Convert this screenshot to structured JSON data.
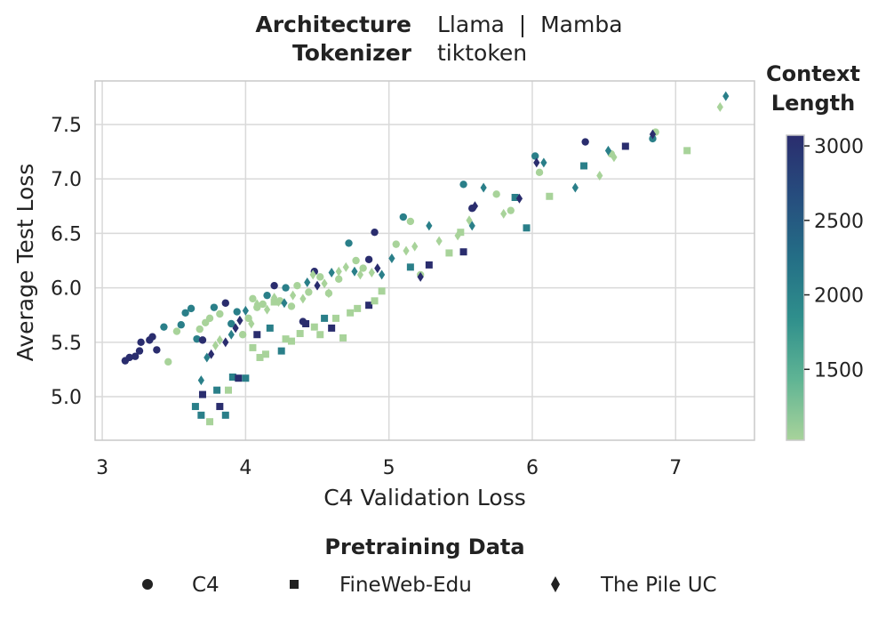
{
  "header": {
    "architecture_label": "Architecture",
    "architecture_value": "Llama  |  Mamba",
    "tokenizer_label": "Tokenizer",
    "tokenizer_value": "tiktoken"
  },
  "colorbar": {
    "title_line1": "Context",
    "title_line2": "Length",
    "min": 1024,
    "max": 3072,
    "ticks": [
      1500,
      2000,
      2500,
      3000
    ],
    "colors": [
      "#a8d39a",
      "#5fb494",
      "#2f8f8c",
      "#246e86",
      "#264d7e",
      "#2a2d6e"
    ]
  },
  "legend": {
    "title": "Pretraining Data",
    "items": [
      {
        "label": "C4",
        "marker": "circle"
      },
      {
        "label": "FineWeb-Edu",
        "marker": "square"
      },
      {
        "label": "The Pile UC",
        "marker": "diamond"
      }
    ]
  },
  "chart_data": {
    "type": "scatter",
    "title": "",
    "xlabel": "C4 Validation Loss",
    "ylabel": "Average Test Loss",
    "xlim": [
      2.95,
      7.55
    ],
    "ylim": [
      4.6,
      7.9
    ],
    "xticks": [
      3,
      4,
      5,
      6,
      7
    ],
    "yticks": [
      5.0,
      5.5,
      6.0,
      6.5,
      7.0,
      7.5
    ],
    "grid": true,
    "series": [
      {
        "name": "C4",
        "marker": "circle",
        "points": [
          {
            "x": 3.16,
            "y": 5.33,
            "ctx": 3072
          },
          {
            "x": 3.19,
            "y": 5.36,
            "ctx": 3072
          },
          {
            "x": 3.23,
            "y": 5.37,
            "ctx": 3072
          },
          {
            "x": 3.26,
            "y": 5.42,
            "ctx": 3072
          },
          {
            "x": 3.27,
            "y": 5.5,
            "ctx": 3072
          },
          {
            "x": 3.33,
            "y": 5.52,
            "ctx": 3072
          },
          {
            "x": 3.35,
            "y": 5.55,
            "ctx": 3072
          },
          {
            "x": 3.38,
            "y": 5.43,
            "ctx": 3072
          },
          {
            "x": 3.43,
            "y": 5.64,
            "ctx": 2048
          },
          {
            "x": 3.46,
            "y": 5.32,
            "ctx": 1024
          },
          {
            "x": 3.52,
            "y": 5.6,
            "ctx": 1024
          },
          {
            "x": 3.55,
            "y": 5.66,
            "ctx": 2048
          },
          {
            "x": 3.58,
            "y": 5.77,
            "ctx": 2048
          },
          {
            "x": 3.62,
            "y": 5.81,
            "ctx": 2048
          },
          {
            "x": 3.66,
            "y": 5.53,
            "ctx": 2048
          },
          {
            "x": 3.68,
            "y": 5.62,
            "ctx": 1024
          },
          {
            "x": 3.7,
            "y": 5.52,
            "ctx": 3072
          },
          {
            "x": 3.72,
            "y": 5.68,
            "ctx": 1024
          },
          {
            "x": 3.75,
            "y": 5.72,
            "ctx": 1024
          },
          {
            "x": 3.78,
            "y": 5.82,
            "ctx": 2048
          },
          {
            "x": 3.82,
            "y": 5.76,
            "ctx": 1024
          },
          {
            "x": 3.86,
            "y": 5.86,
            "ctx": 3072
          },
          {
            "x": 3.9,
            "y": 5.67,
            "ctx": 2048
          },
          {
            "x": 3.94,
            "y": 5.78,
            "ctx": 2048
          },
          {
            "x": 3.98,
            "y": 5.57,
            "ctx": 1024
          },
          {
            "x": 4.02,
            "y": 5.72,
            "ctx": 1024
          },
          {
            "x": 4.05,
            "y": 5.9,
            "ctx": 1024
          },
          {
            "x": 4.08,
            "y": 5.82,
            "ctx": 1024
          },
          {
            "x": 4.12,
            "y": 5.85,
            "ctx": 1024
          },
          {
            "x": 4.15,
            "y": 5.93,
            "ctx": 2048
          },
          {
            "x": 4.2,
            "y": 6.02,
            "ctx": 3072
          },
          {
            "x": 4.24,
            "y": 5.88,
            "ctx": 1024
          },
          {
            "x": 4.28,
            "y": 6.0,
            "ctx": 2048
          },
          {
            "x": 4.32,
            "y": 5.83,
            "ctx": 1024
          },
          {
            "x": 4.36,
            "y": 6.02,
            "ctx": 1024
          },
          {
            "x": 4.4,
            "y": 5.69,
            "ctx": 3072
          },
          {
            "x": 4.44,
            "y": 5.96,
            "ctx": 1024
          },
          {
            "x": 4.48,
            "y": 6.15,
            "ctx": 3072
          },
          {
            "x": 4.52,
            "y": 6.1,
            "ctx": 1024
          },
          {
            "x": 4.58,
            "y": 5.95,
            "ctx": 1024
          },
          {
            "x": 4.65,
            "y": 6.08,
            "ctx": 1024
          },
          {
            "x": 4.72,
            "y": 6.41,
            "ctx": 2048
          },
          {
            "x": 4.77,
            "y": 6.25,
            "ctx": 1024
          },
          {
            "x": 4.82,
            "y": 6.18,
            "ctx": 1024
          },
          {
            "x": 4.86,
            "y": 6.26,
            "ctx": 3072
          },
          {
            "x": 4.9,
            "y": 6.51,
            "ctx": 3072
          },
          {
            "x": 5.05,
            "y": 6.4,
            "ctx": 1024
          },
          {
            "x": 5.1,
            "y": 6.65,
            "ctx": 2048
          },
          {
            "x": 5.15,
            "y": 6.61,
            "ctx": 1024
          },
          {
            "x": 5.22,
            "y": 6.12,
            "ctx": 1024
          },
          {
            "x": 5.52,
            "y": 6.95,
            "ctx": 2048
          },
          {
            "x": 5.58,
            "y": 6.73,
            "ctx": 3072
          },
          {
            "x": 5.75,
            "y": 6.86,
            "ctx": 1024
          },
          {
            "x": 5.85,
            "y": 6.71,
            "ctx": 1024
          },
          {
            "x": 6.02,
            "y": 7.21,
            "ctx": 2048
          },
          {
            "x": 6.05,
            "y": 7.06,
            "ctx": 1024
          },
          {
            "x": 6.37,
            "y": 7.34,
            "ctx": 3072
          },
          {
            "x": 6.55,
            "y": 7.23,
            "ctx": 1024
          },
          {
            "x": 6.84,
            "y": 7.37,
            "ctx": 2048
          },
          {
            "x": 6.86,
            "y": 7.43,
            "ctx": 1024
          }
        ]
      },
      {
        "name": "FineWeb-Edu",
        "marker": "square",
        "points": [
          {
            "x": 3.65,
            "y": 4.91,
            "ctx": 2048
          },
          {
            "x": 3.69,
            "y": 4.83,
            "ctx": 2048
          },
          {
            "x": 3.7,
            "y": 5.02,
            "ctx": 3072
          },
          {
            "x": 3.75,
            "y": 4.77,
            "ctx": 1024
          },
          {
            "x": 3.8,
            "y": 5.06,
            "ctx": 2048
          },
          {
            "x": 3.82,
            "y": 4.91,
            "ctx": 3072
          },
          {
            "x": 3.86,
            "y": 4.83,
            "ctx": 2048
          },
          {
            "x": 3.88,
            "y": 5.06,
            "ctx": 1024
          },
          {
            "x": 3.91,
            "y": 5.18,
            "ctx": 2048
          },
          {
            "x": 3.95,
            "y": 5.17,
            "ctx": 3072
          },
          {
            "x": 4.0,
            "y": 5.17,
            "ctx": 2048
          },
          {
            "x": 4.05,
            "y": 5.45,
            "ctx": 1024
          },
          {
            "x": 4.08,
            "y": 5.57,
            "ctx": 3072
          },
          {
            "x": 4.1,
            "y": 5.36,
            "ctx": 1024
          },
          {
            "x": 4.14,
            "y": 5.39,
            "ctx": 1024
          },
          {
            "x": 4.17,
            "y": 5.63,
            "ctx": 2048
          },
          {
            "x": 4.2,
            "y": 5.87,
            "ctx": 1024
          },
          {
            "x": 4.25,
            "y": 5.42,
            "ctx": 2048
          },
          {
            "x": 4.28,
            "y": 5.53,
            "ctx": 1024
          },
          {
            "x": 4.32,
            "y": 5.51,
            "ctx": 1024
          },
          {
            "x": 4.38,
            "y": 5.58,
            "ctx": 1024
          },
          {
            "x": 4.42,
            "y": 5.67,
            "ctx": 3072
          },
          {
            "x": 4.48,
            "y": 5.64,
            "ctx": 1024
          },
          {
            "x": 4.52,
            "y": 5.57,
            "ctx": 1024
          },
          {
            "x": 4.55,
            "y": 5.72,
            "ctx": 2048
          },
          {
            "x": 4.6,
            "y": 5.63,
            "ctx": 3072
          },
          {
            "x": 4.63,
            "y": 5.72,
            "ctx": 1024
          },
          {
            "x": 4.68,
            "y": 5.54,
            "ctx": 1024
          },
          {
            "x": 4.73,
            "y": 5.77,
            "ctx": 1024
          },
          {
            "x": 4.78,
            "y": 5.81,
            "ctx": 1024
          },
          {
            "x": 4.86,
            "y": 5.84,
            "ctx": 3072
          },
          {
            "x": 4.9,
            "y": 5.88,
            "ctx": 1024
          },
          {
            "x": 4.95,
            "y": 5.97,
            "ctx": 1024
          },
          {
            "x": 5.15,
            "y": 6.19,
            "ctx": 2048
          },
          {
            "x": 5.28,
            "y": 6.21,
            "ctx": 3072
          },
          {
            "x": 5.42,
            "y": 6.32,
            "ctx": 1024
          },
          {
            "x": 5.52,
            "y": 6.33,
            "ctx": 3072
          },
          {
            "x": 5.5,
            "y": 6.51,
            "ctx": 1024
          },
          {
            "x": 5.88,
            "y": 6.83,
            "ctx": 2048
          },
          {
            "x": 5.96,
            "y": 6.55,
            "ctx": 2048
          },
          {
            "x": 6.12,
            "y": 6.84,
            "ctx": 1024
          },
          {
            "x": 6.36,
            "y": 7.12,
            "ctx": 2048
          },
          {
            "x": 6.65,
            "y": 7.3,
            "ctx": 3072
          },
          {
            "x": 7.08,
            "y": 7.26,
            "ctx": 1024
          }
        ]
      },
      {
        "name": "The Pile UC",
        "marker": "diamond",
        "points": [
          {
            "x": 3.69,
            "y": 5.15,
            "ctx": 2048
          },
          {
            "x": 3.73,
            "y": 5.36,
            "ctx": 2048
          },
          {
            "x": 3.76,
            "y": 5.39,
            "ctx": 3072
          },
          {
            "x": 3.79,
            "y": 5.47,
            "ctx": 1024
          },
          {
            "x": 3.82,
            "y": 5.52,
            "ctx": 1024
          },
          {
            "x": 3.86,
            "y": 5.5,
            "ctx": 3072
          },
          {
            "x": 3.9,
            "y": 5.57,
            "ctx": 2048
          },
          {
            "x": 3.93,
            "y": 5.63,
            "ctx": 3072
          },
          {
            "x": 3.96,
            "y": 5.7,
            "ctx": 3072
          },
          {
            "x": 4.0,
            "y": 5.79,
            "ctx": 2048
          },
          {
            "x": 4.04,
            "y": 5.67,
            "ctx": 1024
          },
          {
            "x": 4.08,
            "y": 5.85,
            "ctx": 1024
          },
          {
            "x": 4.15,
            "y": 5.8,
            "ctx": 1024
          },
          {
            "x": 4.2,
            "y": 5.91,
            "ctx": 1024
          },
          {
            "x": 4.23,
            "y": 5.87,
            "ctx": 1024
          },
          {
            "x": 4.27,
            "y": 5.86,
            "ctx": 2048
          },
          {
            "x": 4.33,
            "y": 5.93,
            "ctx": 1024
          },
          {
            "x": 4.4,
            "y": 5.9,
            "ctx": 1024
          },
          {
            "x": 4.43,
            "y": 6.05,
            "ctx": 2048
          },
          {
            "x": 4.47,
            "y": 6.12,
            "ctx": 1024
          },
          {
            "x": 4.5,
            "y": 6.02,
            "ctx": 3072
          },
          {
            "x": 4.55,
            "y": 6.04,
            "ctx": 1024
          },
          {
            "x": 4.58,
            "y": 5.95,
            "ctx": 1024
          },
          {
            "x": 4.6,
            "y": 6.14,
            "ctx": 2048
          },
          {
            "x": 4.65,
            "y": 6.15,
            "ctx": 1024
          },
          {
            "x": 4.7,
            "y": 6.19,
            "ctx": 1024
          },
          {
            "x": 4.76,
            "y": 6.15,
            "ctx": 2048
          },
          {
            "x": 4.8,
            "y": 6.12,
            "ctx": 1024
          },
          {
            "x": 4.88,
            "y": 6.14,
            "ctx": 1024
          },
          {
            "x": 4.92,
            "y": 6.18,
            "ctx": 3072
          },
          {
            "x": 4.95,
            "y": 6.12,
            "ctx": 2048
          },
          {
            "x": 5.02,
            "y": 6.27,
            "ctx": 2048
          },
          {
            "x": 5.12,
            "y": 6.34,
            "ctx": 1024
          },
          {
            "x": 5.18,
            "y": 6.38,
            "ctx": 1024
          },
          {
            "x": 5.22,
            "y": 6.1,
            "ctx": 3072
          },
          {
            "x": 5.28,
            "y": 6.57,
            "ctx": 2048
          },
          {
            "x": 5.35,
            "y": 6.43,
            "ctx": 1024
          },
          {
            "x": 5.48,
            "y": 6.48,
            "ctx": 1024
          },
          {
            "x": 5.56,
            "y": 6.62,
            "ctx": 1024
          },
          {
            "x": 5.58,
            "y": 6.57,
            "ctx": 2048
          },
          {
            "x": 5.6,
            "y": 6.75,
            "ctx": 3072
          },
          {
            "x": 5.66,
            "y": 6.92,
            "ctx": 2048
          },
          {
            "x": 5.8,
            "y": 6.68,
            "ctx": 1024
          },
          {
            "x": 5.91,
            "y": 6.82,
            "ctx": 3072
          },
          {
            "x": 6.03,
            "y": 7.15,
            "ctx": 3072
          },
          {
            "x": 6.08,
            "y": 7.15,
            "ctx": 2048
          },
          {
            "x": 6.3,
            "y": 6.92,
            "ctx": 2048
          },
          {
            "x": 6.47,
            "y": 7.03,
            "ctx": 1024
          },
          {
            "x": 6.53,
            "y": 7.26,
            "ctx": 2048
          },
          {
            "x": 6.57,
            "y": 7.2,
            "ctx": 1024
          },
          {
            "x": 6.84,
            "y": 7.41,
            "ctx": 3072
          },
          {
            "x": 7.31,
            "y": 7.66,
            "ctx": 1024
          },
          {
            "x": 7.35,
            "y": 7.76,
            "ctx": 2048
          }
        ]
      }
    ]
  }
}
